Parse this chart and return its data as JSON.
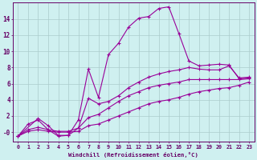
{
  "xlabel": "Windchill (Refroidissement éolien,°C)",
  "bg_color": "#cff0f0",
  "line_color": "#990099",
  "grid_color": "#aacccc",
  "axis_color": "#660066",
  "xlim": [
    -0.5,
    23.5
  ],
  "ylim": [
    -1.2,
    16.0
  ],
  "yticks": [
    0,
    2,
    4,
    6,
    8,
    10,
    12,
    14
  ],
  "ytick_labels": [
    "-0",
    "2",
    "4",
    "6",
    "8",
    "10",
    "12",
    "14"
  ],
  "xticks": [
    0,
    1,
    2,
    3,
    4,
    5,
    6,
    7,
    8,
    9,
    10,
    11,
    12,
    13,
    14,
    15,
    16,
    17,
    18,
    19,
    20,
    21,
    22,
    23
  ],
  "series1_x": [
    0,
    1,
    2,
    3,
    4,
    5,
    6,
    7,
    8,
    9,
    10,
    11,
    12,
    13,
    14,
    15,
    16,
    17,
    18,
    19,
    20,
    21,
    22,
    23
  ],
  "series1_y": [
    -0.5,
    1.0,
    1.5,
    0.3,
    -0.5,
    -0.4,
    1.5,
    7.8,
    4.3,
    9.6,
    11.0,
    13.0,
    14.1,
    14.3,
    15.3,
    15.5,
    12.2,
    8.8,
    8.2,
    8.3,
    8.4,
    8.3,
    6.6,
    6.7
  ],
  "series2_x": [
    0,
    2,
    3,
    4,
    5,
    6,
    7,
    8,
    9,
    10,
    11,
    12,
    13,
    14,
    15,
    16,
    17,
    18,
    19,
    20,
    21,
    22,
    23
  ],
  "series2_y": [
    -0.5,
    1.7,
    0.8,
    -0.4,
    -0.4,
    0.5,
    4.2,
    3.5,
    3.8,
    4.5,
    5.5,
    6.2,
    6.8,
    7.2,
    7.5,
    7.7,
    8.0,
    7.8,
    7.7,
    7.7,
    8.2,
    6.7,
    6.8
  ],
  "series3_x": [
    0,
    1,
    2,
    3,
    4,
    5,
    6,
    7,
    8,
    9,
    10,
    11,
    12,
    13,
    14,
    15,
    16,
    17,
    18,
    19,
    20,
    21,
    22,
    23
  ],
  "series3_y": [
    -0.5,
    0.3,
    0.6,
    0.3,
    0.1,
    0.1,
    0.5,
    1.8,
    2.2,
    3.0,
    3.8,
    4.5,
    5.0,
    5.5,
    5.8,
    6.0,
    6.2,
    6.5,
    6.5,
    6.5,
    6.5,
    6.5,
    6.5,
    6.6
  ],
  "series4_x": [
    0,
    1,
    2,
    3,
    4,
    5,
    6,
    7,
    8,
    9,
    10,
    11,
    12,
    13,
    14,
    15,
    16,
    17,
    18,
    19,
    20,
    21,
    22,
    23
  ],
  "series4_y": [
    -0.5,
    0.1,
    0.3,
    0.1,
    0.0,
    0.0,
    0.1,
    0.8,
    1.0,
    1.5,
    2.0,
    2.5,
    3.0,
    3.5,
    3.8,
    4.0,
    4.3,
    4.7,
    5.0,
    5.2,
    5.4,
    5.5,
    5.8,
    6.2
  ]
}
